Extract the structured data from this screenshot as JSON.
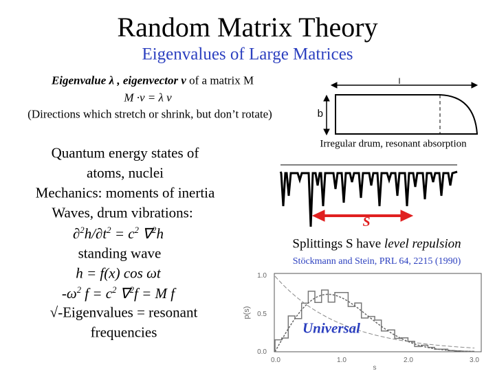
{
  "title": "Random Matrix Theory",
  "subtitle": "Eigenvalues of Large Matrices",
  "definition": {
    "line1": [
      "Eigenvalue λ , eigenvector v",
      " of a matrix M"
    ],
    "line2": "M ·v = λ v",
    "line3": "(Directions which stretch or shrink, but don’t rotate)"
  },
  "applications": {
    "lines": [
      "Quantum energy states of",
      "atoms, nuclei",
      "Mechanics: moments of inertia",
      "Waves, drum vibrations:"
    ],
    "wave_equation": [
      "∂",
      "2",
      "h/∂t",
      "2",
      " = c",
      "2",
      " ∇",
      "2",
      "h"
    ],
    "standing": "standing wave",
    "solution": "h = f(x) cos ωt",
    "eigen_equation": [
      "-ω",
      "2",
      " f = c",
      "2",
      " ∇",
      "2",
      "f = M f"
    ],
    "closing": [
      "√-Eigenvalues = resonant",
      "frequencies"
    ]
  },
  "drum": {
    "length_label": "l",
    "width_label": "b",
    "caption": "Irregular drum, resonant absorption"
  },
  "spectrum": {
    "splitting_label": "S"
  },
  "splittings": [
    "Splittings S have ",
    "level repulsion"
  ],
  "citation": "Stöckmann and Stein, PRL 64, 2215 (1990)",
  "plot": {
    "y_axis_label": "p(s)",
    "x_axis_label": "s",
    "y_tick_labels": [
      "1.0",
      "0.5",
      "0.0"
    ],
    "x_tick_labels": [
      "0.0",
      "1.0",
      "2.0",
      "3.0"
    ],
    "annotation": "Universal"
  }
}
